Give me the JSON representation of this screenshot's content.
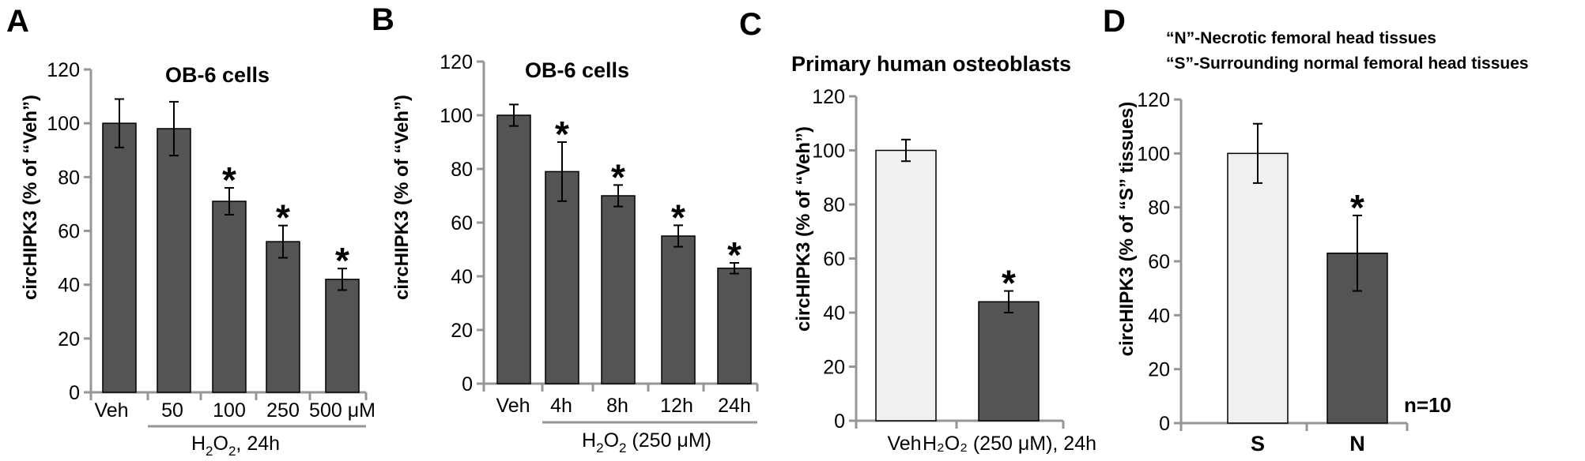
{
  "colors": {
    "dark_bar": "#545454",
    "light_bar": "#f0f0f0",
    "axis": "#969696"
  },
  "chart_data": [
    {
      "panel": "A",
      "type": "bar",
      "title": "OB-6 cells",
      "ylabel": "circHIPK3 (% of “Veh”)",
      "ylim": [
        0,
        120
      ],
      "yticks": [
        "0",
        "20",
        "40",
        "60",
        "80",
        "100",
        "120"
      ],
      "categories": [
        "Veh",
        "50",
        "100",
        "250",
        "500 μM"
      ],
      "group_label_pre": "H",
      "group_label_sub1": "2",
      "group_label_mid": "O",
      "group_label_sub2": "2",
      "group_label_post": ", 24h",
      "series": [
        {
          "values": [
            100,
            98,
            71,
            56,
            42
          ],
          "errors": [
            9,
            10,
            5,
            6,
            4
          ],
          "significant": [
            false,
            false,
            true,
            true,
            true
          ],
          "fill": "dark"
        }
      ],
      "annotations": []
    },
    {
      "panel": "B",
      "type": "bar",
      "title": "OB-6 cells",
      "ylabel": "circHIPK3 (% of “Veh”)",
      "ylim": [
        0,
        120
      ],
      "yticks": [
        "0",
        "20",
        "40",
        "60",
        "80",
        "100",
        "120"
      ],
      "categories": [
        "Veh",
        "4h",
        "8h",
        "12h",
        "24h"
      ],
      "group_label_pre": "H",
      "group_label_sub1": "2",
      "group_label_mid": "O",
      "group_label_sub2": "2",
      "group_label_post": " (250 μM)",
      "series": [
        {
          "values": [
            100,
            79,
            70,
            55,
            43
          ],
          "errors": [
            4,
            11,
            4,
            4,
            2
          ],
          "significant": [
            false,
            true,
            true,
            true,
            true
          ],
          "fill": "dark"
        }
      ],
      "annotations": []
    },
    {
      "panel": "C",
      "type": "bar",
      "title": "Primary human osteoblasts",
      "ylabel": "circHIPK3 (% of “Veh”)",
      "ylim": [
        0,
        120
      ],
      "yticks": [
        "0",
        "20",
        "40",
        "60",
        "80",
        "100",
        "120"
      ],
      "categories": [
        "Veh",
        "H₂O₂ (250 μM), 24h"
      ],
      "series": [
        {
          "values": [
            100,
            44
          ],
          "errors": [
            4,
            4
          ],
          "significant": [
            false,
            true
          ],
          "fills": [
            "light",
            "dark"
          ]
        }
      ],
      "annotations": []
    },
    {
      "panel": "D",
      "type": "bar",
      "title": "",
      "ylabel": "circHIPK3 (% of “S” tissues)",
      "ylim": [
        0,
        120
      ],
      "yticks": [
        "0",
        "20",
        "40",
        "60",
        "80",
        "100",
        "120"
      ],
      "categories": [
        "S",
        "N"
      ],
      "series": [
        {
          "values": [
            100,
            63
          ],
          "errors": [
            11,
            14
          ],
          "significant": [
            false,
            true
          ],
          "fills": [
            "light",
            "dark"
          ]
        }
      ],
      "annotations": [
        "“N”-Necrotic femoral head tissues",
        "“S”-Surrounding normal femoral head tissues",
        "n=10"
      ]
    }
  ]
}
